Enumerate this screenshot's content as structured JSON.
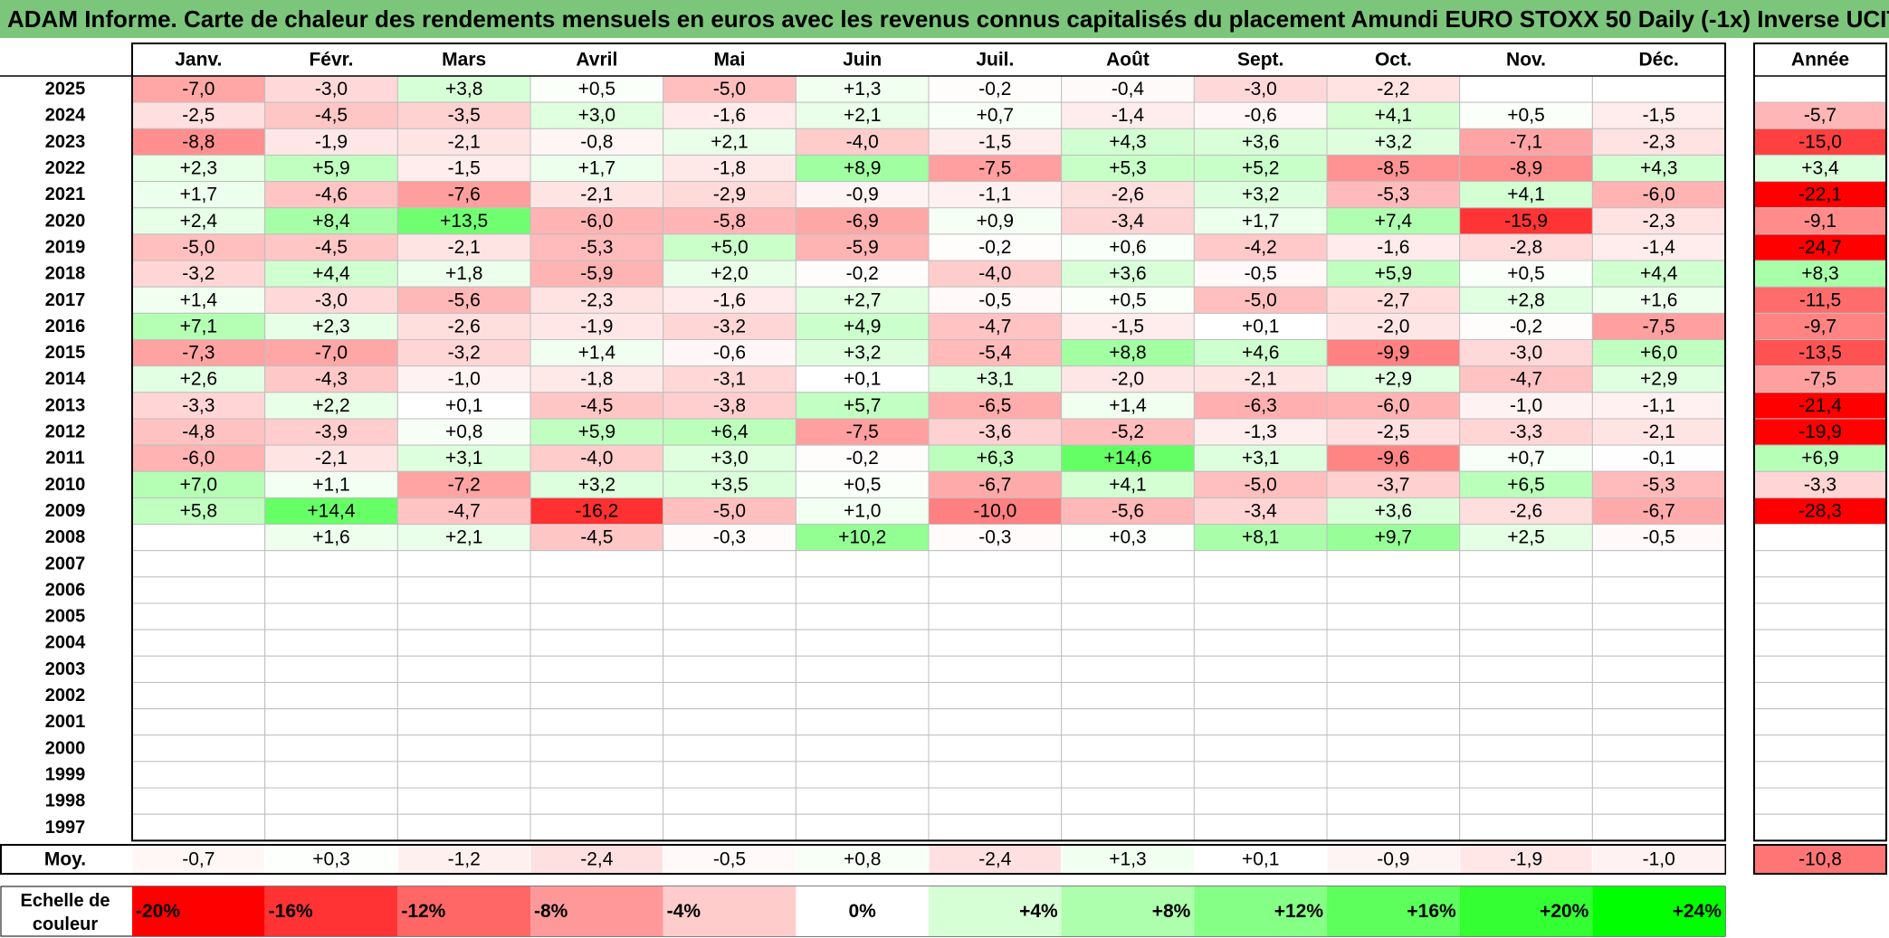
{
  "title": "ADAM Informe. Carte de chaleur des rendements mensuels en euros avec les revenus connus capitalisés du placement Amundi EURO STOXX 50 Daily (-1x) Inverse UCITS ETF",
  "chart_data": {
    "type": "heatmap",
    "columns": [
      "Janv.",
      "Févr.",
      "Mars",
      "Avril",
      "Mai",
      "Juin",
      "Juil.",
      "Août",
      "Sept.",
      "Oct.",
      "Nov.",
      "Déc."
    ],
    "annual_header": "Année",
    "rows": [
      {
        "year": "2025",
        "values": [
          "-7,0",
          "-3,0",
          "+3,8",
          "+0,5",
          "-5,0",
          "+1,3",
          "-0,2",
          "-0,4",
          "-3,0",
          "-2,2",
          "",
          ""
        ],
        "annual": ""
      },
      {
        "year": "2024",
        "values": [
          "-2,5",
          "-4,5",
          "-3,5",
          "+3,0",
          "-1,6",
          "+2,1",
          "+0,7",
          "-1,4",
          "-0,6",
          "+4,1",
          "+0,5",
          "-1,5"
        ],
        "annual": "-5,7"
      },
      {
        "year": "2023",
        "values": [
          "-8,8",
          "-1,9",
          "-2,1",
          "-0,8",
          "+2,1",
          "-4,0",
          "-1,5",
          "+4,3",
          "+3,6",
          "+3,2",
          "-7,1",
          "-2,3"
        ],
        "annual": "-15,0"
      },
      {
        "year": "2022",
        "values": [
          "+2,3",
          "+5,9",
          "-1,5",
          "+1,7",
          "-1,8",
          "+8,9",
          "-7,5",
          "+5,3",
          "+5,2",
          "-8,5",
          "-8,9",
          "+4,3"
        ],
        "annual": "+3,4"
      },
      {
        "year": "2021",
        "values": [
          "+1,7",
          "-4,6",
          "-7,6",
          "-2,1",
          "-2,9",
          "-0,9",
          "-1,1",
          "-2,6",
          "+3,2",
          "-5,3",
          "+4,1",
          "-6,0"
        ],
        "annual": "-22,1"
      },
      {
        "year": "2020",
        "values": [
          "+2,4",
          "+8,4",
          "+13,5",
          "-6,0",
          "-5,8",
          "-6,9",
          "+0,9",
          "-3,4",
          "+1,7",
          "+7,4",
          "-15,9",
          "-2,3"
        ],
        "annual": "-9,1"
      },
      {
        "year": "2019",
        "values": [
          "-5,0",
          "-4,5",
          "-2,1",
          "-5,3",
          "+5,0",
          "-5,9",
          "-0,2",
          "+0,6",
          "-4,2",
          "-1,6",
          "-2,8",
          "-1,4"
        ],
        "annual": "-24,7"
      },
      {
        "year": "2018",
        "values": [
          "-3,2",
          "+4,4",
          "+1,8",
          "-5,9",
          "+2,0",
          "-0,2",
          "-4,0",
          "+3,6",
          "-0,5",
          "+5,9",
          "+0,5",
          "+4,4"
        ],
        "annual": "+8,3"
      },
      {
        "year": "2017",
        "values": [
          "+1,4",
          "-3,0",
          "-5,6",
          "-2,3",
          "-1,6",
          "+2,7",
          "-0,5",
          "+0,5",
          "-5,0",
          "-2,7",
          "+2,8",
          "+1,6"
        ],
        "annual": "-11,5"
      },
      {
        "year": "2016",
        "values": [
          "+7,1",
          "+2,3",
          "-2,6",
          "-1,9",
          "-3,2",
          "+4,9",
          "-4,7",
          "-1,5",
          "+0,1",
          "-2,0",
          "-0,2",
          "-7,5"
        ],
        "annual": "-9,7"
      },
      {
        "year": "2015",
        "values": [
          "-7,3",
          "-7,0",
          "-3,2",
          "+1,4",
          "-0,6",
          "+3,2",
          "-5,4",
          "+8,8",
          "+4,6",
          "-9,9",
          "-3,0",
          "+6,0"
        ],
        "annual": "-13,5"
      },
      {
        "year": "2014",
        "values": [
          "+2,6",
          "-4,3",
          "-1,0",
          "-1,8",
          "-3,1",
          "+0,1",
          "+3,1",
          "-2,0",
          "-2,1",
          "+2,9",
          "-4,7",
          "+2,9"
        ],
        "annual": "-7,5"
      },
      {
        "year": "2013",
        "values": [
          "-3,3",
          "+2,2",
          "+0,1",
          "-4,5",
          "-3,8",
          "+5,7",
          "-6,5",
          "+1,4",
          "-6,3",
          "-6,0",
          "-1,0",
          "-1,1"
        ],
        "annual": "-21,4"
      },
      {
        "year": "2012",
        "values": [
          "-4,8",
          "-3,9",
          "+0,8",
          "+5,9",
          "+6,4",
          "-7,5",
          "-3,6",
          "-5,2",
          "-1,3",
          "-2,5",
          "-3,3",
          "-2,1"
        ],
        "annual": "-19,9"
      },
      {
        "year": "2011",
        "values": [
          "-6,0",
          "-2,1",
          "+3,1",
          "-4,0",
          "+3,0",
          "-0,2",
          "+6,3",
          "+14,6",
          "+3,1",
          "-9,6",
          "+0,7",
          "-0,1"
        ],
        "annual": "+6,9"
      },
      {
        "year": "2010",
        "values": [
          "+7,0",
          "+1,1",
          "-7,2",
          "+3,2",
          "+3,5",
          "+0,5",
          "-6,7",
          "+4,1",
          "-5,0",
          "-3,7",
          "+6,5",
          "-5,3"
        ],
        "annual": "-3,3"
      },
      {
        "year": "2009",
        "values": [
          "+5,8",
          "+14,4",
          "-4,7",
          "-16,2",
          "-5,0",
          "+1,0",
          "-10,0",
          "-5,6",
          "-3,4",
          "+3,6",
          "-2,6",
          "-6,7"
        ],
        "annual": "-28,3"
      },
      {
        "year": "2008",
        "values": [
          "",
          "+1,6",
          "+2,1",
          "-4,5",
          "-0,3",
          "+10,2",
          "-0,3",
          "+0,3",
          "+8,1",
          "+9,7",
          "+2,5",
          "-0,5"
        ],
        "annual": ""
      },
      {
        "year": "2007",
        "values": [
          "",
          "",
          "",
          "",
          "",
          "",
          "",
          "",
          "",
          "",
          "",
          ""
        ],
        "annual": ""
      },
      {
        "year": "2006",
        "values": [
          "",
          "",
          "",
          "",
          "",
          "",
          "",
          "",
          "",
          "",
          "",
          ""
        ],
        "annual": ""
      },
      {
        "year": "2005",
        "values": [
          "",
          "",
          "",
          "",
          "",
          "",
          "",
          "",
          "",
          "",
          "",
          ""
        ],
        "annual": ""
      },
      {
        "year": "2004",
        "values": [
          "",
          "",
          "",
          "",
          "",
          "",
          "",
          "",
          "",
          "",
          "",
          ""
        ],
        "annual": ""
      },
      {
        "year": "2003",
        "values": [
          "",
          "",
          "",
          "",
          "",
          "",
          "",
          "",
          "",
          "",
          "",
          ""
        ],
        "annual": ""
      },
      {
        "year": "2002",
        "values": [
          "",
          "",
          "",
          "",
          "",
          "",
          "",
          "",
          "",
          "",
          "",
          ""
        ],
        "annual": ""
      },
      {
        "year": "2001",
        "values": [
          "",
          "",
          "",
          "",
          "",
          "",
          "",
          "",
          "",
          "",
          "",
          ""
        ],
        "annual": ""
      },
      {
        "year": "2000",
        "values": [
          "",
          "",
          "",
          "",
          "",
          "",
          "",
          "",
          "",
          "",
          "",
          ""
        ],
        "annual": ""
      },
      {
        "year": "1999",
        "values": [
          "",
          "",
          "",
          "",
          "",
          "",
          "",
          "",
          "",
          "",
          "",
          ""
        ],
        "annual": ""
      },
      {
        "year": "1998",
        "values": [
          "",
          "",
          "",
          "",
          "",
          "",
          "",
          "",
          "",
          "",
          "",
          ""
        ],
        "annual": ""
      },
      {
        "year": "1997",
        "values": [
          "",
          "",
          "",
          "",
          "",
          "",
          "",
          "",
          "",
          "",
          "",
          ""
        ],
        "annual": ""
      }
    ],
    "average": {
      "label": "Moy.",
      "values": [
        "-0,7",
        "+0,3",
        "-1,2",
        "-2,4",
        "-0,5",
        "+0,8",
        "-2,4",
        "+1,3",
        "+0,1",
        "-0,9",
        "-1,9",
        "-1,0"
      ],
      "annual": "-10,8"
    },
    "color_scale": {
      "label_lines": [
        "Echelle de",
        "couleur"
      ],
      "stops": [
        {
          "label": "-20%",
          "value": -20,
          "color": "#ff0000"
        },
        {
          "label": "-16%",
          "value": -16,
          "color": "#ff3333"
        },
        {
          "label": "-12%",
          "value": -12,
          "color": "#ff6666"
        },
        {
          "label": "-8%",
          "value": -8,
          "color": "#ff9999"
        },
        {
          "label": "-4%",
          "value": -4,
          "color": "#ffcccc"
        },
        {
          "label": "0%",
          "value": 0,
          "color": "#ffffff"
        },
        {
          "label": "+4%",
          "value": 4,
          "color": "#d6ffd6"
        },
        {
          "label": "+8%",
          "value": 8,
          "color": "#adffad"
        },
        {
          "label": "+12%",
          "value": 12,
          "color": "#85ff85"
        },
        {
          "label": "+16%",
          "value": 16,
          "color": "#5cff5c"
        },
        {
          "label": "+20%",
          "value": 20,
          "color": "#33ff33"
        },
        {
          "label": "+24%",
          "value": 24,
          "color": "#00ff00"
        }
      ]
    },
    "colors": {
      "title_bg": "#7bc67b",
      "negative": "#ff0000",
      "positive": "#00ff00",
      "grid": "#bfbfbf",
      "border": "#000000"
    }
  }
}
